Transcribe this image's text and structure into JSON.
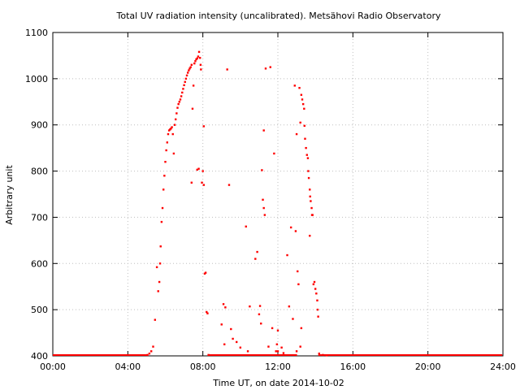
{
  "chart_data": {
    "type": "scatter",
    "title": "Total UV radiation intensity (uncalibrated). Metsähovi Radio Observatory",
    "xlabel": "Time UT, on date 2014-10-02",
    "ylabel": "Arbitrary unit",
    "xlim": [
      0,
      24
    ],
    "ylim": [
      400,
      1100
    ],
    "grid": true,
    "x_ticks": [
      {
        "value": 0,
        "label": "00:00"
      },
      {
        "value": 4,
        "label": "04:00"
      },
      {
        "value": 8,
        "label": "08:00"
      },
      {
        "value": 12,
        "label": "12:00"
      },
      {
        "value": 16,
        "label": "16:00"
      },
      {
        "value": 20,
        "label": "20:00"
      },
      {
        "value": 24,
        "label": "24:00"
      }
    ],
    "y_ticks": [
      {
        "value": 400,
        "label": "400"
      },
      {
        "value": 500,
        "label": "500"
      },
      {
        "value": 600,
        "label": "600"
      },
      {
        "value": 700,
        "label": "700"
      },
      {
        "value": 800,
        "label": "800"
      },
      {
        "value": 900,
        "label": "900"
      },
      {
        "value": 1000,
        "label": "1000"
      },
      {
        "value": 1100,
        "label": "1100"
      }
    ],
    "marker_color": "#ff0000",
    "series": [
      {
        "name": "",
        "points": [
          [
            5.05,
            402
          ],
          [
            5.15,
            405
          ],
          [
            5.25,
            410
          ],
          [
            5.35,
            420
          ],
          [
            5.45,
            478
          ],
          [
            5.55,
            592
          ],
          [
            5.62,
            540
          ],
          [
            5.68,
            560
          ],
          [
            5.72,
            600
          ],
          [
            5.75,
            637
          ],
          [
            5.8,
            690
          ],
          [
            5.85,
            720
          ],
          [
            5.9,
            760
          ],
          [
            5.95,
            790
          ],
          [
            6.0,
            820
          ],
          [
            6.05,
            845
          ],
          [
            6.1,
            862
          ],
          [
            6.15,
            880
          ],
          [
            6.2,
            888
          ],
          [
            6.25,
            890
          ],
          [
            6.3,
            892
          ],
          [
            6.35,
            895
          ],
          [
            6.4,
            880
          ],
          [
            6.45,
            838
          ],
          [
            6.5,
            900
          ],
          [
            6.55,
            912
          ],
          [
            6.6,
            925
          ],
          [
            6.65,
            937
          ],
          [
            6.7,
            945
          ],
          [
            6.75,
            950
          ],
          [
            6.8,
            955
          ],
          [
            6.85,
            962
          ],
          [
            6.9,
            970
          ],
          [
            6.95,
            978
          ],
          [
            7.0,
            986
          ],
          [
            7.05,
            993
          ],
          [
            7.1,
            1000
          ],
          [
            7.15,
            1007
          ],
          [
            7.2,
            1013
          ],
          [
            7.25,
            1018
          ],
          [
            7.3,
            1022
          ],
          [
            7.35,
            1025
          ],
          [
            7.4,
            1030
          ],
          [
            7.45,
            935
          ],
          [
            7.5,
            985
          ],
          [
            7.55,
            1033
          ],
          [
            7.6,
            1038
          ],
          [
            7.65,
            1042
          ],
          [
            7.7,
            1044
          ],
          [
            7.75,
            1048
          ],
          [
            7.8,
            1058
          ],
          [
            7.85,
            1045
          ],
          [
            7.88,
            1030
          ],
          [
            7.9,
            1020
          ],
          [
            7.95,
            775
          ],
          [
            8.0,
            800
          ],
          [
            8.05,
            770
          ],
          [
            8.1,
            578
          ],
          [
            8.15,
            580
          ],
          [
            8.2,
            495
          ],
          [
            8.25,
            492
          ],
          [
            8.05,
            897
          ],
          [
            7.7,
            803
          ],
          [
            7.78,
            805
          ],
          [
            7.4,
            775
          ],
          [
            8.3,
            402
          ],
          [
            9.3,
            1020
          ],
          [
            9.4,
            770
          ],
          [
            9.1,
            512
          ],
          [
            9.2,
            505
          ],
          [
            9.5,
            458
          ],
          [
            9.0,
            468
          ],
          [
            9.6,
            437
          ],
          [
            9.15,
            425
          ],
          [
            9.8,
            430
          ],
          [
            10.0,
            418
          ],
          [
            10.3,
            680
          ],
          [
            10.5,
            507
          ],
          [
            10.4,
            410
          ],
          [
            10.8,
            610
          ],
          [
            10.9,
            625
          ],
          [
            11.0,
            490
          ],
          [
            11.05,
            508
          ],
          [
            11.1,
            470
          ],
          [
            11.15,
            802
          ],
          [
            11.2,
            738
          ],
          [
            11.25,
            720
          ],
          [
            11.3,
            705
          ],
          [
            11.35,
            1022
          ],
          [
            11.25,
            888
          ],
          [
            11.5,
            420
          ],
          [
            11.6,
            1025
          ],
          [
            11.7,
            460
          ],
          [
            11.8,
            838
          ],
          [
            11.9,
            410
          ],
          [
            12.0,
            410
          ],
          [
            11.95,
            425
          ],
          [
            12.2,
            418
          ],
          [
            12.3,
            406
          ],
          [
            12.5,
            618
          ],
          [
            12.6,
            507
          ],
          [
            12.7,
            678
          ],
          [
            12.8,
            480
          ],
          [
            12.9,
            985
          ],
          [
            12.95,
            670
          ],
          [
            13.0,
            880
          ],
          [
            13.05,
            583
          ],
          [
            13.1,
            555
          ],
          [
            13.15,
            980
          ],
          [
            13.2,
            905
          ],
          [
            13.25,
            965
          ],
          [
            13.3,
            955
          ],
          [
            13.35,
            945
          ],
          [
            13.4,
            935
          ],
          [
            13.42,
            898
          ],
          [
            13.45,
            870
          ],
          [
            13.5,
            850
          ],
          [
            13.55,
            835
          ],
          [
            13.6,
            828
          ],
          [
            13.62,
            800
          ],
          [
            13.65,
            785
          ],
          [
            13.7,
            760
          ],
          [
            13.72,
            745
          ],
          [
            13.75,
            735
          ],
          [
            13.8,
            720
          ],
          [
            13.82,
            705
          ],
          [
            13.85,
            705
          ],
          [
            13.9,
            555
          ],
          [
            13.95,
            560
          ],
          [
            14.0,
            545
          ],
          [
            14.05,
            535
          ],
          [
            14.1,
            520
          ],
          [
            14.12,
            500
          ],
          [
            14.15,
            485
          ],
          [
            13.7,
            660
          ],
          [
            13.25,
            460
          ],
          [
            12.0,
            455
          ],
          [
            13.0,
            410
          ],
          [
            13.2,
            420
          ],
          [
            14.2,
            405
          ],
          [
            14.4,
            402
          ],
          [
            14.6,
            401
          ]
        ]
      }
    ]
  }
}
